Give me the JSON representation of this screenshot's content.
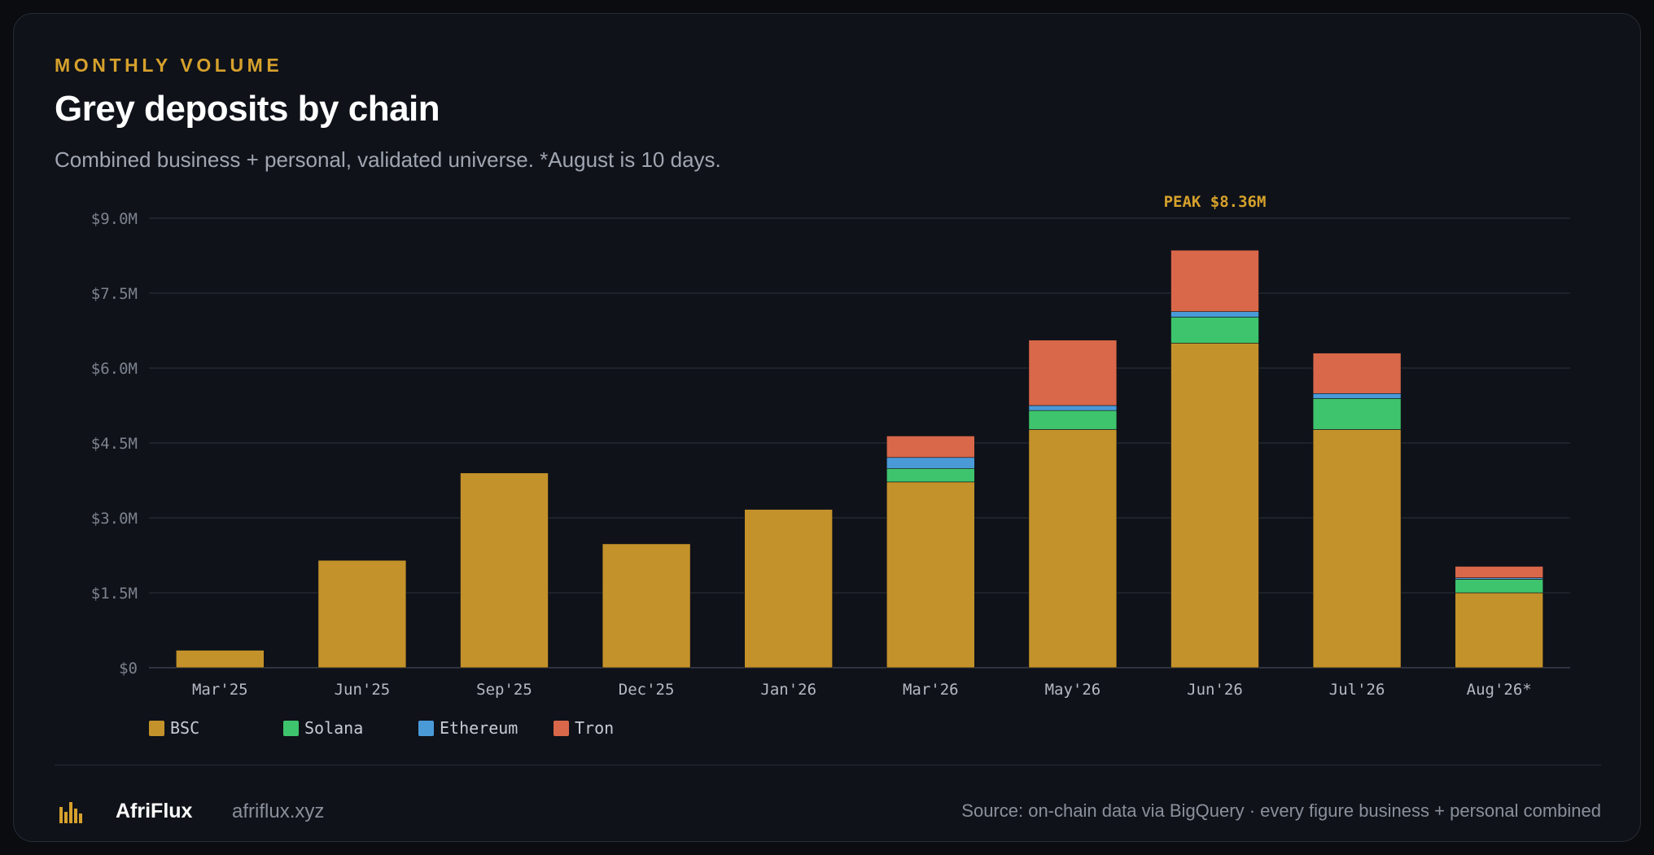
{
  "header": {
    "eyebrow": "MONTHLY VOLUME",
    "title": "Grey deposits by chain",
    "subtitle": "Combined business + personal, validated universe. *August is 10 days."
  },
  "chart_data": {
    "type": "bar",
    "stacked": true,
    "categories": [
      "Mar'25",
      "Jun'25",
      "Sep'25",
      "Dec'25",
      "Jan'26",
      "Mar'26",
      "May'26",
      "Jun'26",
      "Jul'26",
      "Aug'26*"
    ],
    "series": [
      {
        "name": "BSC",
        "color": "#c4922a",
        "values": [
          0.35,
          2.15,
          3.9,
          2.48,
          3.17,
          3.72,
          4.77,
          6.5,
          4.77,
          1.5
        ]
      },
      {
        "name": "Solana",
        "color": "#3ec46d",
        "values": [
          0,
          0,
          0,
          0,
          0,
          0.27,
          0.38,
          0.52,
          0.62,
          0.27
        ]
      },
      {
        "name": "Ethereum",
        "color": "#4a9ad8",
        "values": [
          0,
          0,
          0,
          0,
          0,
          0.22,
          0.1,
          0.11,
          0.1,
          0.03
        ]
      },
      {
        "name": "Tron",
        "color": "#d9674a",
        "values": [
          0,
          0,
          0,
          0,
          0,
          0.43,
          1.31,
          1.23,
          0.81,
          0.23
        ]
      }
    ],
    "yticks": [
      "$0",
      "$1.5M",
      "$3.0M",
      "$4.5M",
      "$6.0M",
      "$7.5M",
      "$9.0M"
    ],
    "ytick_values": [
      0,
      1.5,
      3.0,
      4.5,
      6.0,
      7.5,
      9.0
    ],
    "ylim": [
      0,
      9.0
    ],
    "grid": true,
    "legend_position": "bottom-left",
    "annotation": {
      "text": "PEAK $8.36M",
      "category": "Jun'26",
      "value": 8.36,
      "color": "#d6a12c"
    }
  },
  "footer": {
    "brand": "AfriFlux",
    "url": "afriflux.xyz",
    "source": "Source: on-chain data via BigQuery · every figure business + personal combined"
  }
}
